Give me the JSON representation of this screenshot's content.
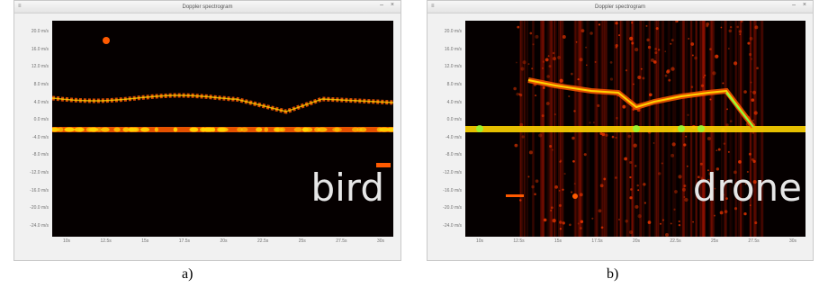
{
  "panel_a": {
    "window_title": "Doppler spectrogram",
    "title_controls": "– ×",
    "menu_glyph": "≡",
    "y_ticks": [
      "20.0 m/s",
      "16.0 m/s",
      "12.0 m/s",
      "8.0 m/s",
      "4.0 m/s",
      "0.0 m/s",
      "-4.0 m/s",
      "-8.0 m/s",
      "-12.0 m/s",
      "-16.0 m/s",
      "-20.0 m/s",
      "-24.0 m/s"
    ],
    "x_ticks": [
      "10s",
      "12.5s",
      "15s",
      "17.5s",
      "20s",
      "22.5s",
      "25s",
      "27.5s",
      "30s"
    ],
    "overlay_label": "bird",
    "caption": "a)",
    "colors": {
      "background": "#050000",
      "signal": "#ff5a00",
      "hot": "#ffd400"
    }
  },
  "panel_b": {
    "window_title": "Doppler spectrogram",
    "title_controls": "– ×",
    "menu_glyph": "≡",
    "y_ticks": [
      "20.0 m/s",
      "16.0 m/s",
      "12.0 m/s",
      "8.0 m/s",
      "4.0 m/s",
      "0.0 m/s",
      "-4.0 m/s",
      "-8.0 m/s",
      "-12.0 m/s",
      "-16.0 m/s",
      "-20.0 m/s",
      "-24.0 m/s"
    ],
    "x_ticks": [
      "10s",
      "12.5s",
      "15s",
      "17.5s",
      "20s",
      "22.5s",
      "25s",
      "27.5s",
      "30s"
    ],
    "overlay_label": "drone",
    "caption": "b)",
    "colors": {
      "background": "#050000",
      "signal": "#ff5a00",
      "hot": "#ffd400",
      "green": "#8cff3a"
    }
  }
}
